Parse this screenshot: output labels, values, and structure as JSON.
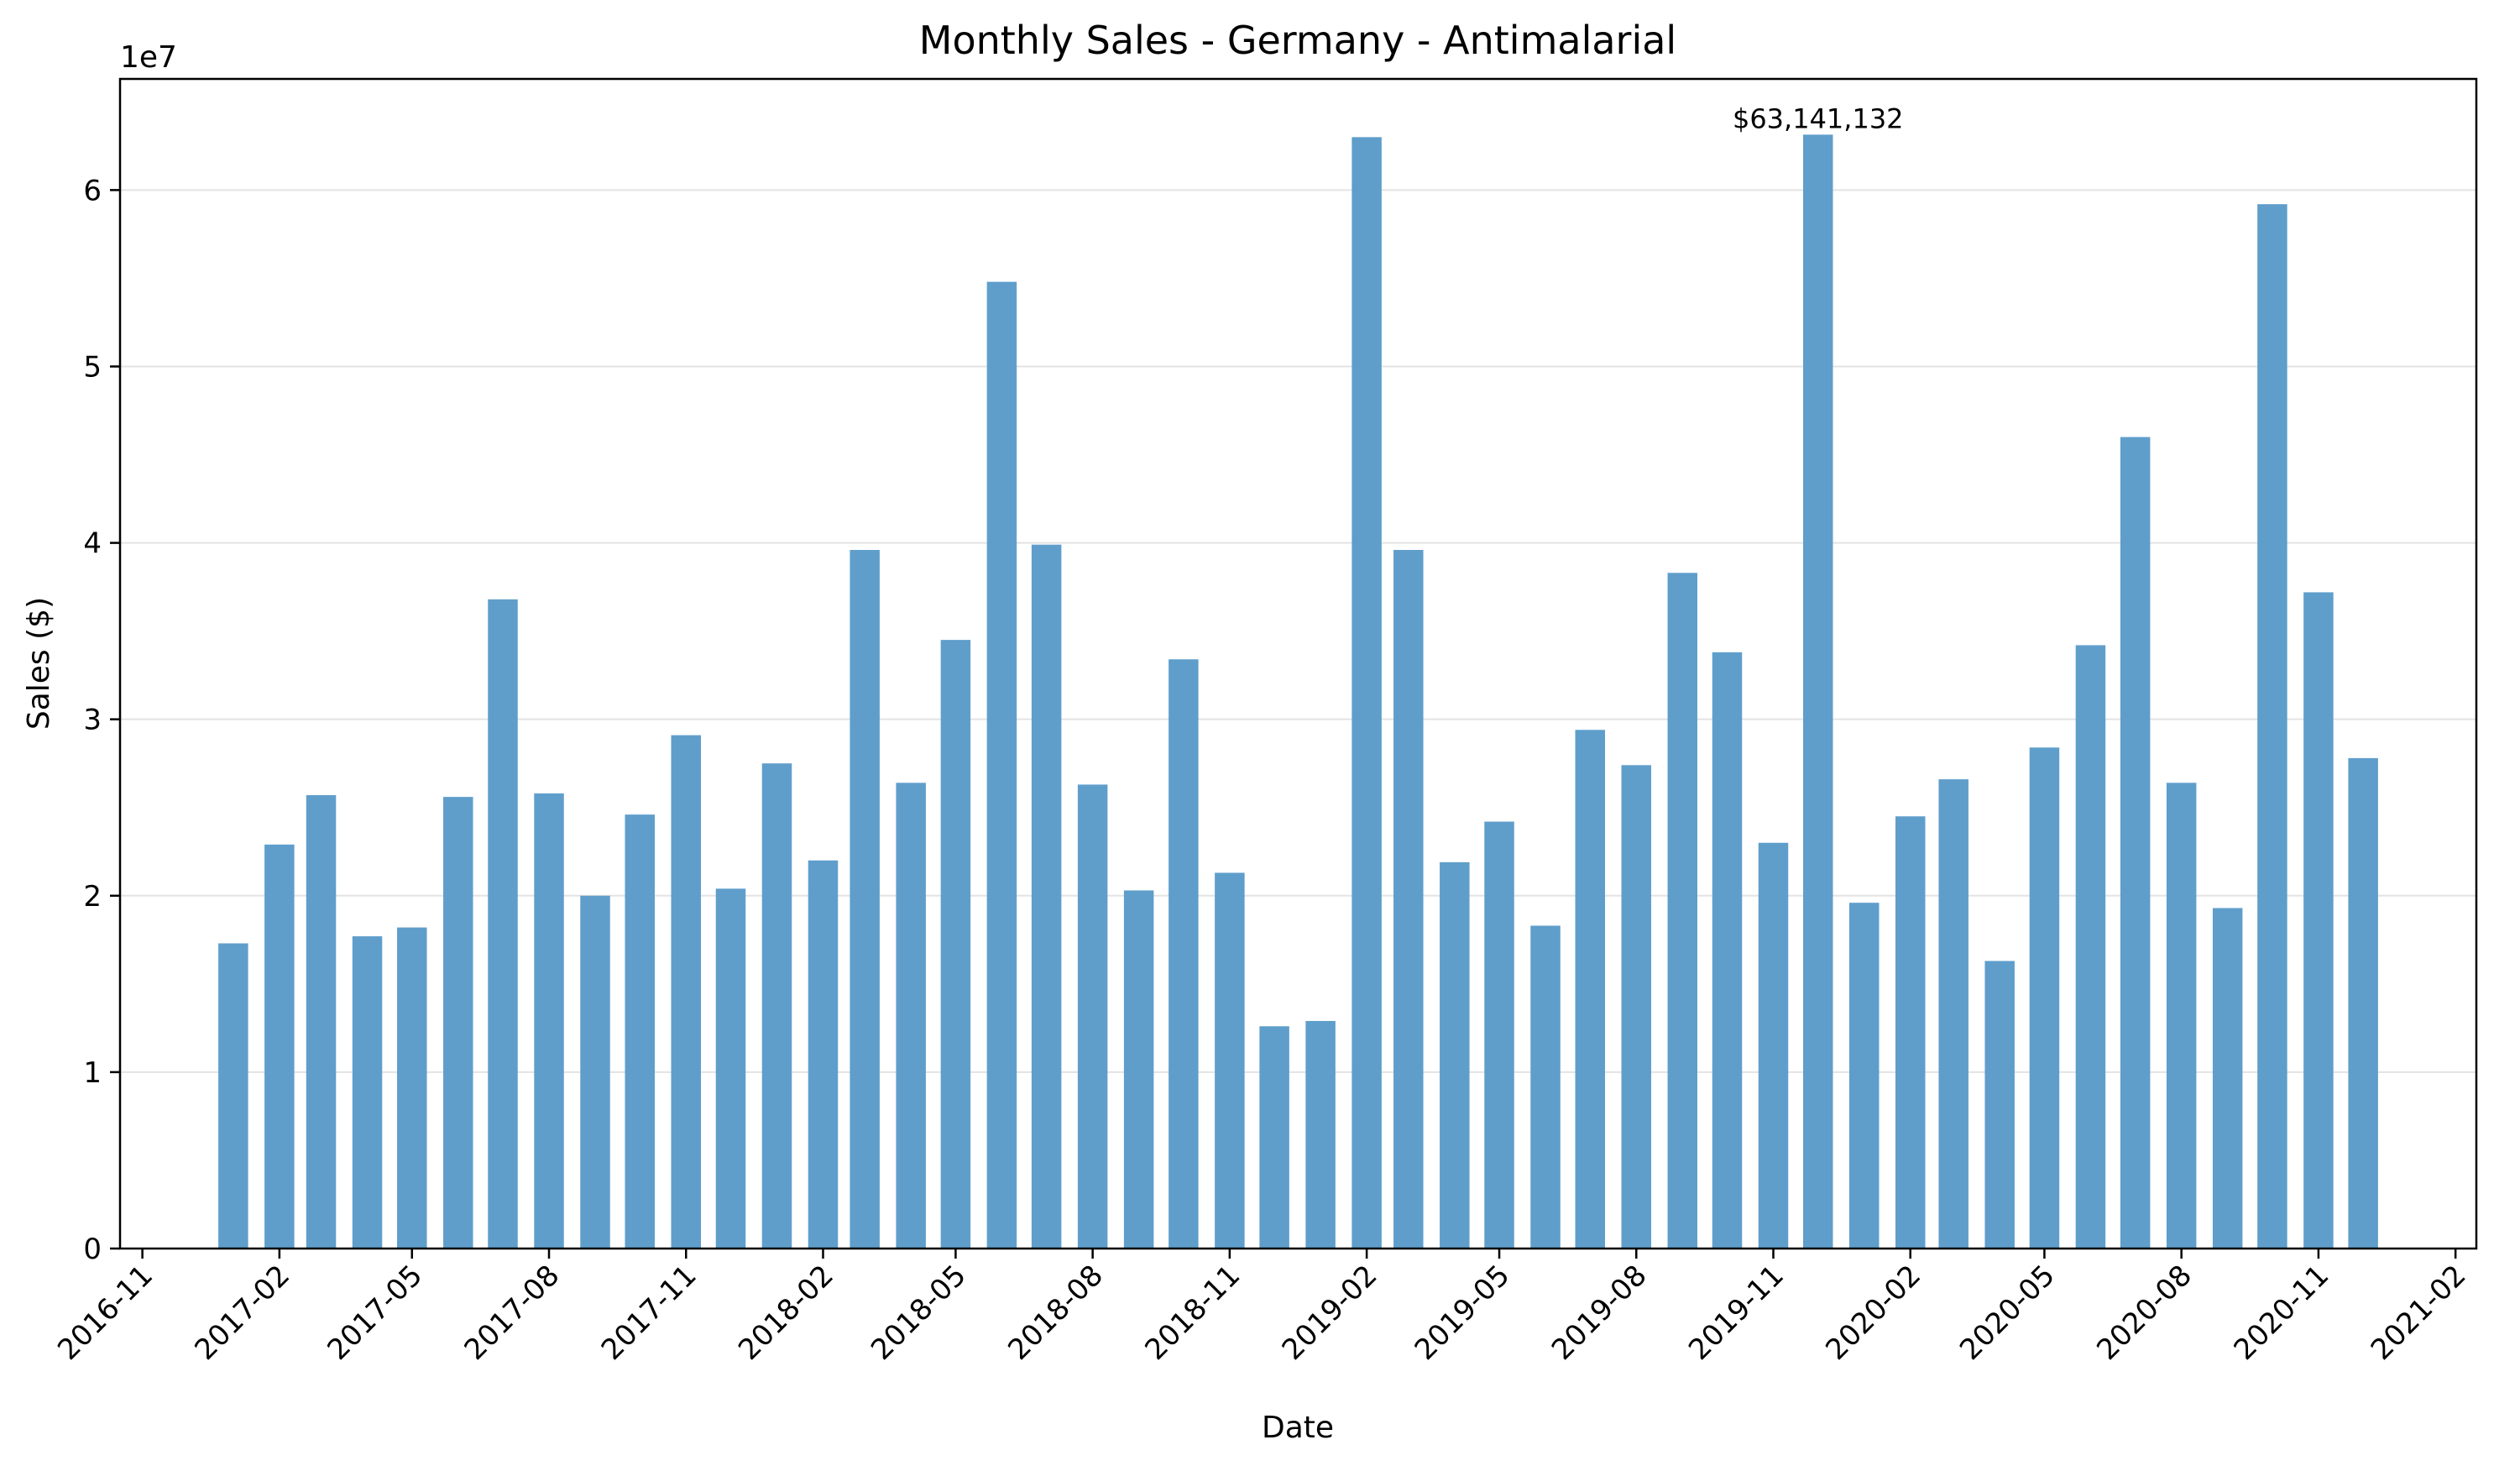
{
  "chart_data": {
    "type": "bar",
    "title": "Monthly Sales - Germany - Antimalarial",
    "xlabel": "Date",
    "ylabel": "Sales ($)",
    "y_offset_label": "1e7",
    "ylim": [
      0,
      66300000
    ],
    "xlim": [
      "2016-10-17",
      "2021-02-15"
    ],
    "grid": "horizontal",
    "color": "#5f9ecb",
    "x": [
      "2017-01-01",
      "2017-02-01",
      "2017-03-01",
      "2017-04-01",
      "2017-05-01",
      "2017-06-01",
      "2017-07-01",
      "2017-08-01",
      "2017-09-01",
      "2017-10-01",
      "2017-11-01",
      "2017-12-01",
      "2018-01-01",
      "2018-02-01",
      "2018-03-01",
      "2018-04-01",
      "2018-05-01",
      "2018-06-01",
      "2018-07-01",
      "2018-08-01",
      "2018-09-01",
      "2018-10-01",
      "2018-11-01",
      "2018-12-01",
      "2019-01-01",
      "2019-02-01",
      "2019-03-01",
      "2019-04-01",
      "2019-05-01",
      "2019-06-01",
      "2019-07-01",
      "2019-08-01",
      "2019-09-01",
      "2019-10-01",
      "2019-11-01",
      "2019-12-01",
      "2020-01-01",
      "2020-02-01",
      "2020-03-01",
      "2020-04-01",
      "2020-05-01",
      "2020-06-01",
      "2020-07-01",
      "2020-08-01",
      "2020-09-01",
      "2020-10-01",
      "2020-11-01",
      "2020-12-01"
    ],
    "values": [
      17300000,
      22900000,
      25700000,
      17700000,
      18200000,
      25600000,
      36800000,
      25800000,
      20000000,
      24600000,
      29100000,
      20400000,
      27500000,
      22000000,
      39600000,
      26400000,
      34500000,
      54800000,
      39900000,
      26300000,
      20300000,
      33400000,
      21300000,
      12600000,
      12900000,
      63000000,
      39600000,
      21900000,
      24200000,
      18300000,
      29400000,
      27400000,
      38300000,
      33800000,
      23000000,
      63141132,
      19600000,
      24500000,
      26600000,
      16300000,
      28400000,
      34200000,
      46000000,
      26400000,
      19300000,
      59200000,
      37200000,
      27800000
    ],
    "y_ticks": [
      {
        "value": 0,
        "label": "0"
      },
      {
        "value": 10000000,
        "label": "1"
      },
      {
        "value": 20000000,
        "label": "2"
      },
      {
        "value": 30000000,
        "label": "3"
      },
      {
        "value": 40000000,
        "label": "4"
      },
      {
        "value": 50000000,
        "label": "5"
      },
      {
        "value": 60000000,
        "label": "6"
      }
    ],
    "x_ticks": [
      {
        "date": "2016-11-01",
        "label": "2016-11"
      },
      {
        "date": "2017-02-01",
        "label": "2017-02"
      },
      {
        "date": "2017-05-01",
        "label": "2017-05"
      },
      {
        "date": "2017-08-01",
        "label": "2017-08"
      },
      {
        "date": "2017-11-01",
        "label": "2017-11"
      },
      {
        "date": "2018-02-01",
        "label": "2018-02"
      },
      {
        "date": "2018-05-01",
        "label": "2018-05"
      },
      {
        "date": "2018-08-01",
        "label": "2018-08"
      },
      {
        "date": "2018-11-01",
        "label": "2018-11"
      },
      {
        "date": "2019-02-01",
        "label": "2019-02"
      },
      {
        "date": "2019-05-01",
        "label": "2019-05"
      },
      {
        "date": "2019-08-01",
        "label": "2019-08"
      },
      {
        "date": "2019-11-01",
        "label": "2019-11"
      },
      {
        "date": "2020-02-01",
        "label": "2020-02"
      },
      {
        "date": "2020-05-01",
        "label": "2020-05"
      },
      {
        "date": "2020-08-01",
        "label": "2020-08"
      },
      {
        "date": "2020-11-01",
        "label": "2020-11"
      },
      {
        "date": "2021-02-01",
        "label": "2021-02"
      }
    ],
    "annotations": [
      {
        "x": "2019-12-01",
        "y": 63141132,
        "text": "$63,141,132"
      }
    ]
  }
}
